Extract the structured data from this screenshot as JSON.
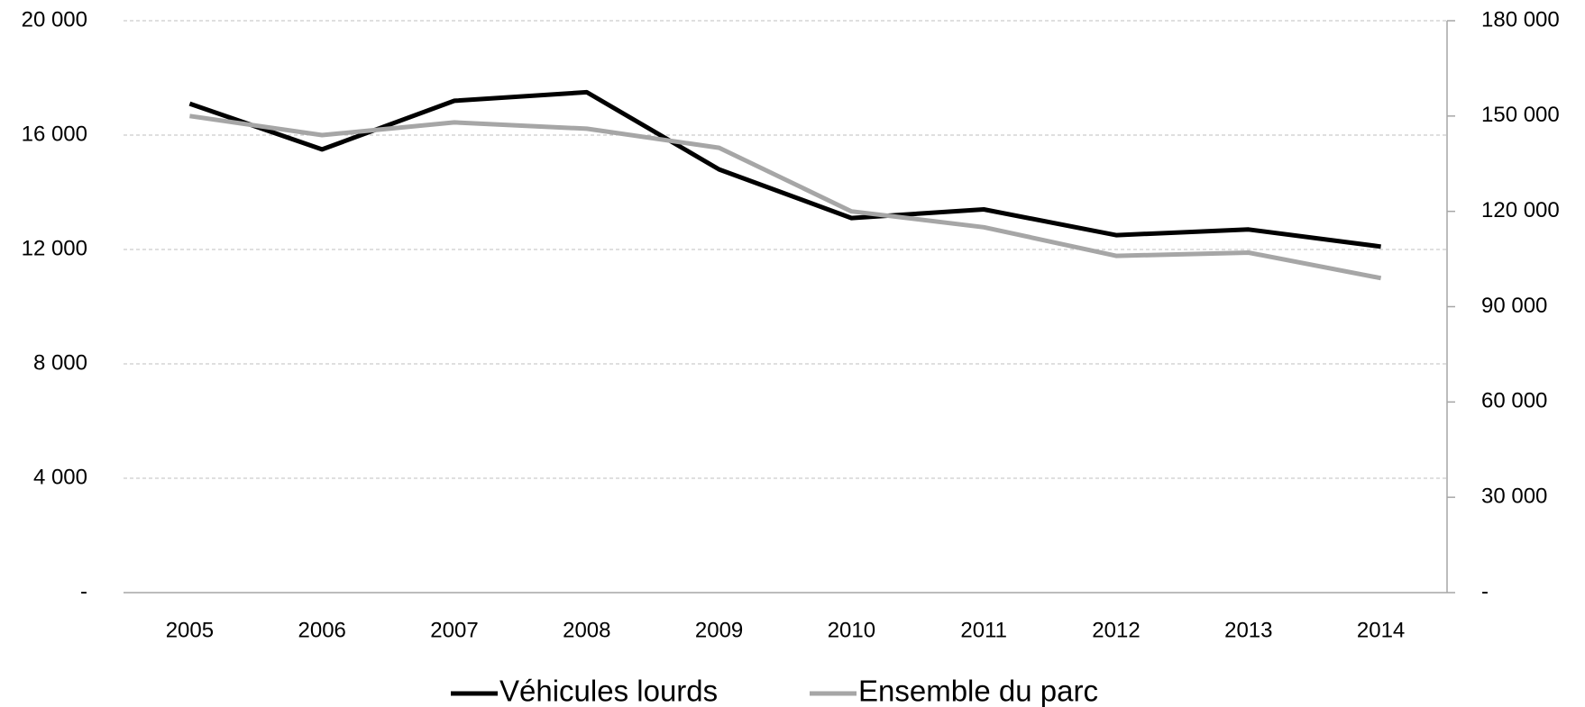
{
  "chart_data": {
    "type": "line",
    "categories": [
      "2005",
      "2006",
      "2007",
      "2008",
      "2009",
      "2010",
      "2011",
      "2012",
      "2013",
      "2014"
    ],
    "series": [
      {
        "name": "Véhicules lourds",
        "color": "#000000",
        "values": [
          17100,
          15500,
          17200,
          17500,
          14800,
          13100,
          13400,
          12500,
          12700,
          12100
        ]
      },
      {
        "name": "Ensemble du parc",
        "color": "#a6a6a6",
        "axis": "y2",
        "values": [
          150000,
          144000,
          148000,
          146000,
          140000,
          120000,
          115000,
          106000,
          107000,
          99000
        ]
      }
    ],
    "ylim": [
      0,
      20000
    ],
    "yticks": [
      {
        "value": 0,
        "label": "-"
      },
      {
        "value": 4000,
        "label": "4 000"
      },
      {
        "value": 8000,
        "label": "8 000"
      },
      {
        "value": 12000,
        "label": "12 000"
      },
      {
        "value": 16000,
        "label": "16 000"
      },
      {
        "value": 20000,
        "label": "20 000"
      }
    ],
    "y2lim": [
      0,
      180000
    ],
    "y2ticks": [
      {
        "value": 0,
        "label": "-"
      },
      {
        "value": 30000,
        "label": "30 000"
      },
      {
        "value": 60000,
        "label": "60 000"
      },
      {
        "value": 90000,
        "label": "90 000"
      },
      {
        "value": 120000,
        "label": "120 000"
      },
      {
        "value": 150000,
        "label": "150 000"
      },
      {
        "value": 180000,
        "label": "180 000"
      }
    ],
    "grid": true,
    "legend": "bottom"
  }
}
